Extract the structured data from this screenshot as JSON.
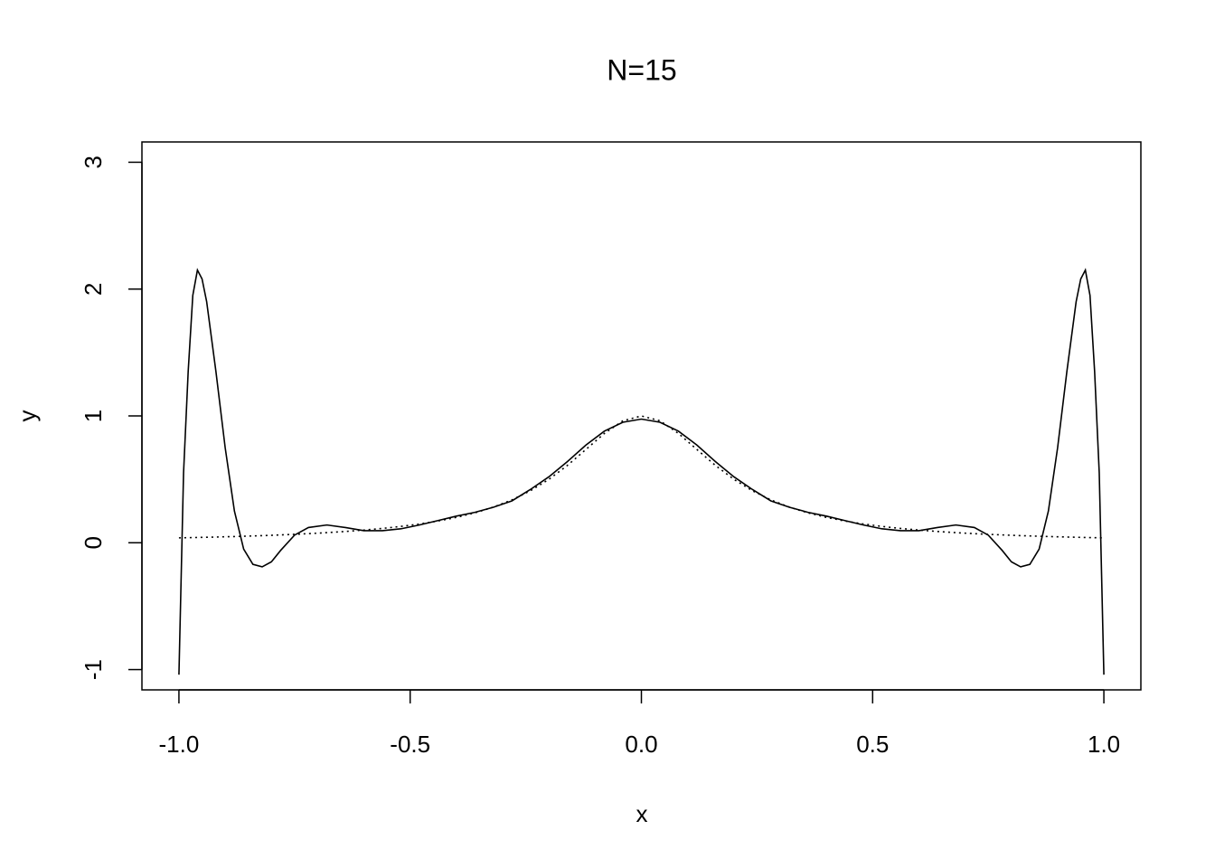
{
  "chart_data": {
    "type": "line",
    "title": "N=15",
    "x_label": "x",
    "y_label": "y",
    "x": [
      -1.0,
      -0.99,
      -0.98,
      -0.97,
      -0.96,
      -0.95,
      -0.94,
      -0.92,
      -0.9,
      -0.88,
      -0.86,
      -0.84,
      -0.82,
      -0.8,
      -0.78,
      -0.75,
      -0.72,
      -0.68,
      -0.64,
      -0.6,
      -0.56,
      -0.52,
      -0.48,
      -0.44,
      -0.4,
      -0.36,
      -0.32,
      -0.28,
      -0.24,
      -0.2,
      -0.16,
      -0.12,
      -0.08,
      -0.04,
      0,
      0.04,
      0.08,
      0.12,
      0.16,
      0.2,
      0.24,
      0.28,
      0.32,
      0.36,
      0.4,
      0.44,
      0.48,
      0.52,
      0.56,
      0.6,
      0.64,
      0.68,
      0.72,
      0.75,
      0.78,
      0.8,
      0.82,
      0.84,
      0.86,
      0.88,
      0.9,
      0.92,
      0.94,
      0.95,
      0.96,
      0.97,
      0.98,
      0.99,
      1.0
    ],
    "series": [
      {
        "color": "#000000",
        "style": "solid",
        "values": [
          -1.04,
          0.55,
          1.35,
          1.95,
          2.15,
          2.08,
          1.9,
          1.35,
          0.75,
          0.25,
          -0.05,
          -0.17,
          -0.19,
          -0.15,
          -0.06,
          0.06,
          0.12,
          0.14,
          0.12,
          0.095,
          0.095,
          0.11,
          0.14,
          0.175,
          0.21,
          0.24,
          0.28,
          0.33,
          0.42,
          0.52,
          0.64,
          0.77,
          0.88,
          0.95,
          0.975,
          0.95,
          0.88,
          0.77,
          0.64,
          0.52,
          0.42,
          0.33,
          0.28,
          0.24,
          0.21,
          0.175,
          0.14,
          0.11,
          0.095,
          0.095,
          0.12,
          0.14,
          0.12,
          0.06,
          -0.06,
          -0.15,
          -0.19,
          -0.17,
          -0.05,
          0.25,
          0.75,
          1.35,
          1.9,
          2.08,
          2.15,
          1.95,
          1.35,
          0.55,
          -1.04
        ]
      },
      {
        "color": "#000000",
        "style": "dotted",
        "values": [
          0.0385,
          0.0392,
          0.04,
          0.0408,
          0.0416,
          0.0425,
          0.0433,
          0.0451,
          0.0471,
          0.0491,
          0.0513,
          0.0536,
          0.0561,
          0.0588,
          0.0617,
          0.0664,
          0.0716,
          0.0796,
          0.089,
          0.1,
          0.1131,
          0.1289,
          0.1479,
          0.1712,
          0.2,
          0.2358,
          0.2809,
          0.3378,
          0.4098,
          0.5,
          0.6098,
          0.7353,
          0.8621,
          0.9615,
          1,
          0.9615,
          0.8621,
          0.7353,
          0.6098,
          0.5,
          0.4098,
          0.3378,
          0.2809,
          0.2358,
          0.2,
          0.1712,
          0.1479,
          0.1289,
          0.1131,
          0.1,
          0.089,
          0.0796,
          0.0716,
          0.0664,
          0.0617,
          0.0588,
          0.0561,
          0.0536,
          0.0513,
          0.0491,
          0.0471,
          0.0451,
          0.0433,
          0.0425,
          0.0416,
          0.0408,
          0.04,
          0.0392,
          0.0385
        ]
      }
    ],
    "xlim": [
      -1.08,
      1.08
    ],
    "ylim": [
      -1.16,
      3.16
    ],
    "xticks": [
      {
        "value": -1,
        "label": "-1.0"
      },
      -0.5,
      {
        "value": 0,
        "label": "0.0"
      },
      0.5,
      {
        "value": 1,
        "label": "1.0"
      }
    ],
    "yticks": [
      -1,
      0,
      1,
      2,
      3
    ],
    "grid": false
  }
}
